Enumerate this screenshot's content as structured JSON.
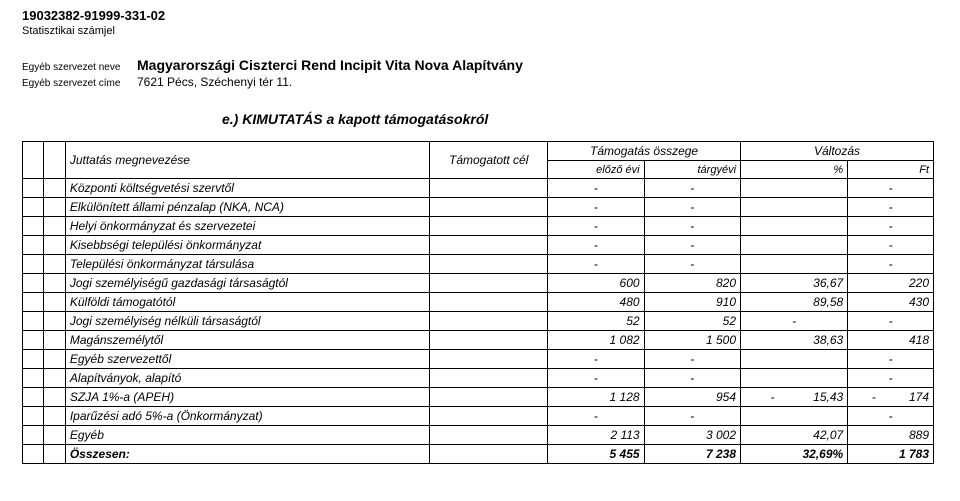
{
  "header": {
    "id": "19032382-91999-331-02",
    "sub": "Statisztikai számjel",
    "org_name_label": "Egyéb szervezet neve",
    "org_name": "Magyarországi Ciszterci Rend Incipit Vita Nova Alapítvány",
    "org_addr_label": "Egyéb szervezet címe",
    "org_addr": "7621 Pécs, Széchenyi tér 11."
  },
  "title": "e.) KIMUTATÁS a kapott támogatásokról",
  "table_header": {
    "name": "Juttatás megnevezése",
    "target": "Támogatott cél",
    "amount": "Támogatás összege",
    "change": "Változás",
    "prev": "előző évi",
    "curr": "tárgyévi",
    "pct": "%",
    "ft": "Ft"
  },
  "rows": [
    {
      "name": "Központi költségvetési szervtől",
      "prev": "-",
      "curr": "-",
      "pct": "",
      "ft": "-"
    },
    {
      "name": "Elkülönített állami pénzalap (NKA, NCA)",
      "prev": "-",
      "curr": "-",
      "pct": "",
      "ft": "-"
    },
    {
      "name": "Helyi önkormányzat és szervezetei",
      "prev": "-",
      "curr": "-",
      "pct": "",
      "ft": "-"
    },
    {
      "name": "Kisebbségi települési önkormányzat",
      "prev": "-",
      "curr": "-",
      "pct": "",
      "ft": "-"
    },
    {
      "name": "Települési önkormányzat társulása",
      "prev": "-",
      "curr": "-",
      "pct": "",
      "ft": "-"
    },
    {
      "name": "Jogi személyiségű gazdasági társaságtól",
      "prev": "600",
      "curr": "820",
      "pct": "36,67",
      "ft": "220"
    },
    {
      "name": "Külföldi támogatótól",
      "prev": "480",
      "curr": "910",
      "pct": "89,58",
      "ft": "430"
    },
    {
      "name": "Jogi személyiség nélküli társaságtól",
      "prev": "52",
      "curr": "52",
      "pct": "-",
      "ft": "-"
    },
    {
      "name": "Magánszemélytől",
      "prev": "1 082",
      "curr": "1 500",
      "pct": "38,63",
      "ft": "418"
    },
    {
      "name": "Egyéb szervezettől",
      "prev": "-",
      "curr": "-",
      "pct": "",
      "ft": "-"
    },
    {
      "name": "Alapítványok, alapító",
      "prev": "-",
      "curr": "-",
      "pct": "",
      "ft": "-"
    },
    {
      "name": "SZJA 1%-a (APEH)",
      "prev": "1 128",
      "curr": "954",
      "pct_sign": "-",
      "pct": "15,43",
      "ft_sign": "-",
      "ft": "174"
    },
    {
      "name": "Iparűzési adó 5%-a (Önkormányzat)",
      "prev": "-",
      "curr": "-",
      "pct": "",
      "ft": "-"
    },
    {
      "name": "Egyéb",
      "prev": "2 113",
      "curr": "3 002",
      "pct": "42,07",
      "ft": "889"
    }
  ],
  "total": {
    "name": "Összesen:",
    "prev": "5 455",
    "curr": "7 238",
    "pct": "32,69%",
    "ft": "1 783"
  }
}
